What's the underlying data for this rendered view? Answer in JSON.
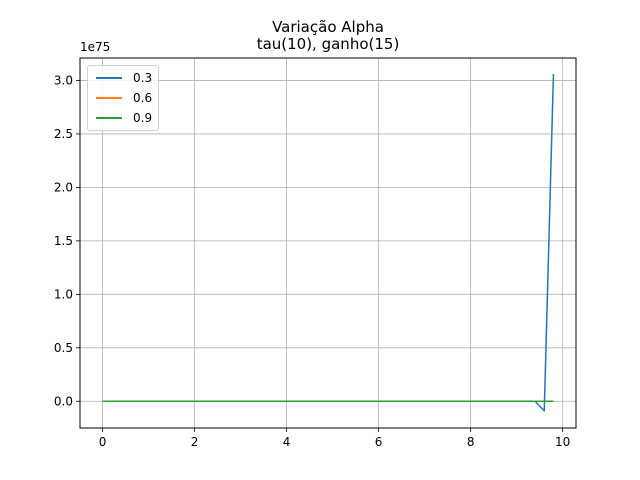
{
  "chart_data": {
    "type": "line",
    "title": "Variação Alpha",
    "subtitle": "tau(10), ganho(15)",
    "y_offset_label": "1e75",
    "xlabel": "",
    "ylabel": "",
    "xlim": [
      -0.49,
      10.29
    ],
    "ylim": [
      -0.25,
      3.21
    ],
    "x_ticks": [
      0,
      2,
      4,
      6,
      8,
      10
    ],
    "x_tick_labels": [
      "0",
      "2",
      "4",
      "6",
      "8",
      "10"
    ],
    "y_ticks": [
      0.0,
      0.5,
      1.0,
      1.5,
      2.0,
      2.5,
      3.0
    ],
    "y_tick_labels": [
      "0.0",
      "0.5",
      "1.0",
      "1.5",
      "2.0",
      "2.5",
      "3.0"
    ],
    "grid": true,
    "legend_position": "top-left",
    "series": [
      {
        "name": "0.3",
        "color": "#1f77b4",
        "x": [
          0,
          1,
          2,
          3,
          4,
          5,
          6,
          7,
          8,
          9,
          9.4,
          9.6,
          9.8
        ],
        "y": [
          0,
          0,
          0,
          0,
          0,
          0,
          0,
          0,
          0,
          0,
          0,
          -0.09,
          3.06
        ]
      },
      {
        "name": "0.6",
        "color": "#ff7f0e",
        "x": [
          0,
          1,
          2,
          3,
          4,
          5,
          6,
          7,
          8,
          9,
          9.8
        ],
        "y": [
          0,
          0,
          0,
          0,
          0,
          0,
          0,
          0,
          0,
          0,
          0
        ]
      },
      {
        "name": "0.9",
        "color": "#2ca02c",
        "x": [
          0,
          1,
          2,
          3,
          4,
          5,
          6,
          7,
          8,
          9,
          9.8
        ],
        "y": [
          0,
          0,
          0,
          0,
          0,
          0,
          0,
          0,
          0,
          0,
          0
        ]
      }
    ]
  }
}
